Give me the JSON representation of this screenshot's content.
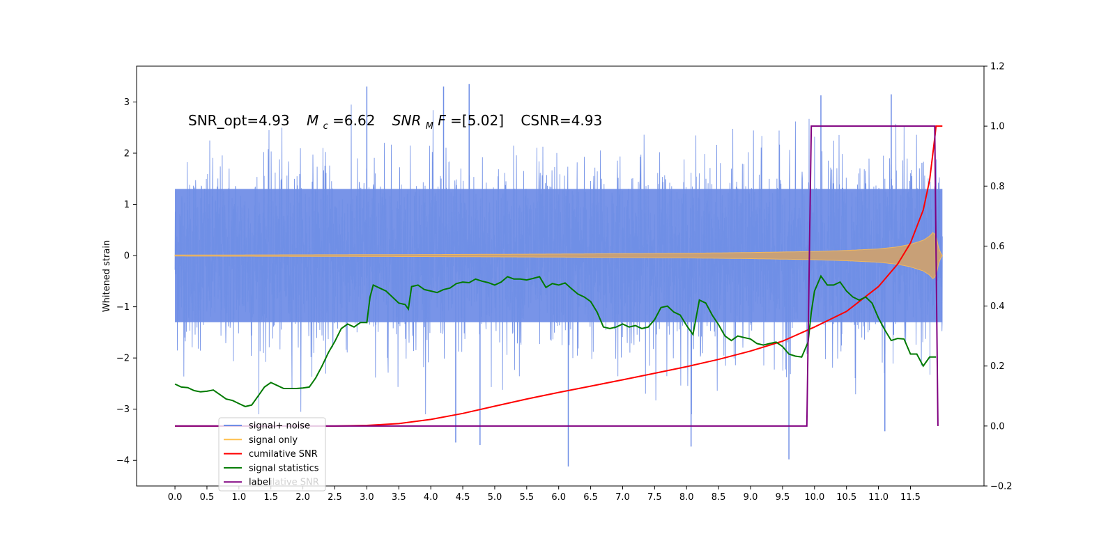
{
  "chart_data": {
    "type": "line",
    "annotation": {
      "snr_opt": "SNR_opt=4.93",
      "mc_symbol": "M",
      "mc_sub": "c",
      "mc_value": "=6.62",
      "snrmf_symbol": "SNR",
      "snrmf_sub": "M",
      "snrmf_tail": "F",
      "snrmf_value": "=[5.02]",
      "csnr": "CSNR=4.93"
    },
    "ylabel_left": "Whitened strain",
    "ylabel_right": "",
    "xlim": [
      -0.6,
      12.65
    ],
    "ylim_left": [
      -4.5,
      3.7
    ],
    "ylim_right": [
      -0.2,
      1.2
    ],
    "xticks": [
      0.0,
      0.5,
      1.0,
      1.5,
      2.0,
      2.5,
      3.0,
      3.5,
      4.0,
      4.5,
      5.0,
      5.5,
      6.0,
      6.5,
      7.0,
      7.5,
      8.0,
      8.5,
      9.0,
      9.5,
      10.0,
      10.5,
      11.0,
      11.5
    ],
    "xtick_labels": [
      "0.0",
      "0.5",
      "1.0",
      "1.5",
      "2.0",
      "2.5",
      "3.0",
      "3.5",
      "4.0",
      "4.5",
      "5.0",
      "5.5",
      "6.0",
      "6.5",
      "7.0",
      "7.5",
      "8.0",
      "8.5",
      "9.0",
      "9.5",
      "10.0",
      "10.5",
      "11.0",
      "11.5"
    ],
    "yticks_left": [
      -4,
      -3,
      -2,
      -1,
      0,
      1,
      2,
      3
    ],
    "yticks_right": [
      -0.2,
      0.0,
      0.2,
      0.4,
      0.6,
      0.8,
      1.0,
      1.2
    ],
    "legend_placement": "bottom-left",
    "legend": [
      {
        "label": "signal+ noise",
        "color": "#6f8ee6"
      },
      {
        "label": "signal only",
        "color": "#ffc04d"
      },
      {
        "label": "cumilative SNR",
        "color": "#ff0000"
      },
      {
        "label": "signal statistics",
        "color": "#007a00"
      },
      {
        "label": "label",
        "color": "#800080"
      }
    ],
    "legend_ghost_text": "cumilative SNR",
    "series": [
      {
        "name": "signal+ noise",
        "axis": "left",
        "description_values": {
          "x_start": 0.0,
          "x_end": 12.0,
          "typical_min": -2.1,
          "typical_max": 2.1,
          "peak_max": 3.35,
          "peak_min": -4.12
        }
      },
      {
        "name": "signal only",
        "axis": "left",
        "x": [
          0.0,
          2.0,
          4.0,
          6.0,
          8.0,
          9.0,
          10.0,
          10.5,
          11.0,
          11.3,
          11.5,
          11.7,
          11.8,
          11.85,
          11.9,
          11.95,
          12.0
        ],
        "envelope": [
          0.01,
          0.015,
          0.02,
          0.03,
          0.045,
          0.06,
          0.08,
          0.1,
          0.13,
          0.17,
          0.22,
          0.3,
          0.38,
          0.45,
          0.4,
          0.1,
          0.0
        ]
      },
      {
        "name": "cumilative SNR",
        "axis": "right",
        "x": [
          0.0,
          2.5,
          3.0,
          3.5,
          4.0,
          4.5,
          5.0,
          5.5,
          6.0,
          6.5,
          7.0,
          7.5,
          8.0,
          8.5,
          9.0,
          9.5,
          10.0,
          10.5,
          11.0,
          11.3,
          11.5,
          11.7,
          11.8,
          11.88,
          11.9,
          12.0
        ],
        "values": [
          0.0,
          0.0,
          0.002,
          0.008,
          0.022,
          0.042,
          0.066,
          0.09,
          0.112,
          0.133,
          0.154,
          0.176,
          0.198,
          0.222,
          0.25,
          0.283,
          0.33,
          0.382,
          0.465,
          0.54,
          0.61,
          0.72,
          0.82,
          0.96,
          1.0,
          1.0
        ]
      },
      {
        "name": "signal statistics",
        "axis": "right",
        "x": [
          0.0,
          0.1,
          0.2,
          0.3,
          0.4,
          0.5,
          0.6,
          0.7,
          0.8,
          0.9,
          1.0,
          1.1,
          1.2,
          1.3,
          1.4,
          1.5,
          1.6,
          1.7,
          1.8,
          1.9,
          2.0,
          2.1,
          2.2,
          2.3,
          2.4,
          2.5,
          2.6,
          2.7,
          2.8,
          2.9,
          3.0,
          3.05,
          3.1,
          3.2,
          3.3,
          3.4,
          3.5,
          3.6,
          3.65,
          3.7,
          3.8,
          3.9,
          4.0,
          4.1,
          4.2,
          4.3,
          4.4,
          4.5,
          4.6,
          4.7,
          4.8,
          4.9,
          5.0,
          5.1,
          5.2,
          5.3,
          5.4,
          5.5,
          5.6,
          5.7,
          5.8,
          5.9,
          6.0,
          6.1,
          6.2,
          6.3,
          6.4,
          6.5,
          6.6,
          6.7,
          6.8,
          6.9,
          7.0,
          7.1,
          7.2,
          7.3,
          7.4,
          7.5,
          7.6,
          7.7,
          7.8,
          7.9,
          8.0,
          8.1,
          8.2,
          8.3,
          8.4,
          8.5,
          8.6,
          8.7,
          8.8,
          8.9,
          9.0,
          9.1,
          9.2,
          9.3,
          9.4,
          9.5,
          9.6,
          9.7,
          9.8,
          9.9,
          9.95,
          10.0,
          10.1,
          10.2,
          10.3,
          10.4,
          10.5,
          10.6,
          10.7,
          10.8,
          10.9,
          11.0,
          11.1,
          11.2,
          11.3,
          11.4,
          11.5,
          11.6,
          11.7,
          11.8,
          11.9
        ],
        "values": [
          0.14,
          0.13,
          0.128,
          0.118,
          0.114,
          0.116,
          0.12,
          0.105,
          0.09,
          0.085,
          0.075,
          0.065,
          0.07,
          0.1,
          0.13,
          0.145,
          0.135,
          0.125,
          0.125,
          0.125,
          0.127,
          0.13,
          0.16,
          0.2,
          0.245,
          0.282,
          0.325,
          0.34,
          0.33,
          0.345,
          0.345,
          0.43,
          0.47,
          0.46,
          0.45,
          0.43,
          0.41,
          0.405,
          0.39,
          0.465,
          0.47,
          0.455,
          0.45,
          0.445,
          0.455,
          0.46,
          0.475,
          0.48,
          0.478,
          0.49,
          0.483,
          0.478,
          0.47,
          0.48,
          0.498,
          0.49,
          0.49,
          0.487,
          0.492,
          0.498,
          0.462,
          0.475,
          0.47,
          0.477,
          0.458,
          0.44,
          0.43,
          0.415,
          0.38,
          0.33,
          0.325,
          0.33,
          0.34,
          0.33,
          0.335,
          0.325,
          0.33,
          0.355,
          0.395,
          0.4,
          0.38,
          0.37,
          0.335,
          0.305,
          0.42,
          0.41,
          0.37,
          0.338,
          0.3,
          0.285,
          0.3,
          0.295,
          0.29,
          0.275,
          0.27,
          0.275,
          0.28,
          0.265,
          0.24,
          0.233,
          0.23,
          0.28,
          0.38,
          0.45,
          0.5,
          0.47,
          0.47,
          0.48,
          0.45,
          0.43,
          0.42,
          0.43,
          0.41,
          0.36,
          0.32,
          0.285,
          0.292,
          0.29,
          0.24,
          0.24,
          0.2,
          0.23,
          0.23
        ]
      },
      {
        "name": "label",
        "axis": "right",
        "x": [
          0.0,
          9.88,
          9.95,
          11.88,
          11.93
        ],
        "values": [
          0.0,
          0.0,
          1.0,
          1.0,
          0.0
        ]
      }
    ]
  }
}
